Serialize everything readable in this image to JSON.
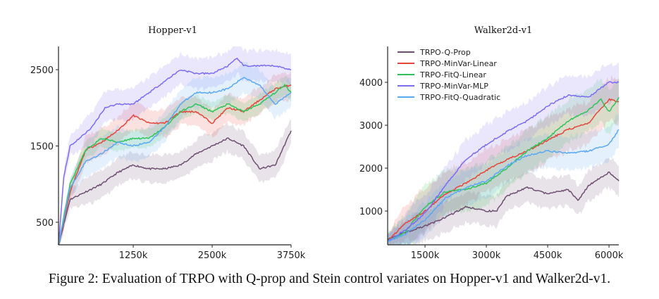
{
  "caption": "Figure 2: Evaluation of TRPO with Q-prop and Stein control variates on Hopper-v1 and Walker2d-v1.",
  "chart_data": [
    {
      "type": "line",
      "title": "Hopper-v1",
      "xlabel": "",
      "ylabel": "",
      "xlim": [
        66,
        3750
      ],
      "ylim": [
        204,
        2805
      ],
      "xticks": [
        1250,
        2500,
        3750
      ],
      "xtick_labels": [
        "1250k",
        "2500k",
        "3750k"
      ],
      "yticks": [
        500,
        1500,
        2500
      ],
      "ytick_labels": [
        "500",
        "1500",
        "2500"
      ],
      "grid": false,
      "legend": "none",
      "series": [
        {
          "name": "TRPO-Q-Prop",
          "color": "#6e4f72",
          "band": 180,
          "x": [
            66,
            250,
            500,
            750,
            1000,
            1250,
            1500,
            1750,
            2000,
            2250,
            2500,
            2750,
            3000,
            3250,
            3500,
            3750
          ],
          "y": [
            200,
            800,
            900,
            1000,
            1150,
            1250,
            1200,
            1200,
            1250,
            1400,
            1500,
            1600,
            1500,
            1200,
            1250,
            1700
          ]
        },
        {
          "name": "TRPO-MinVar-Linear",
          "color": "#e5453a",
          "band": 180,
          "x": [
            66,
            250,
            500,
            750,
            1000,
            1250,
            1500,
            1750,
            2000,
            2250,
            2500,
            2750,
            3000,
            3250,
            3500,
            3750
          ],
          "y": [
            200,
            900,
            1450,
            1550,
            1700,
            1900,
            1800,
            1800,
            1950,
            1950,
            1800,
            2000,
            1950,
            2100,
            2250,
            2300
          ]
        },
        {
          "name": "TRPO-FitQ-Linear",
          "color": "#2fc45a",
          "band": 120,
          "x": [
            66,
            250,
            500,
            750,
            1000,
            1250,
            1500,
            1750,
            2000,
            2250,
            2500,
            2750,
            3000,
            3250,
            3500,
            3650,
            3750
          ],
          "y": [
            200,
            1000,
            1450,
            1600,
            1550,
            1600,
            1600,
            1750,
            1950,
            2050,
            1950,
            2050,
            1950,
            2050,
            2200,
            2300,
            2200
          ]
        },
        {
          "name": "TRPO-MinVar-MLP",
          "color": "#7b6cf5",
          "band": 200,
          "x": [
            66,
            150,
            250,
            400,
            600,
            800,
            1000,
            1250,
            1500,
            1750,
            2000,
            2250,
            2500,
            2750,
            2900,
            3000,
            3250,
            3500,
            3750
          ],
          "y": [
            200,
            1100,
            1500,
            1600,
            1750,
            2000,
            2050,
            2050,
            2200,
            2350,
            2500,
            2450,
            2450,
            2550,
            2650,
            2550,
            2550,
            2550,
            2500
          ]
        },
        {
          "name": "TRPO-FitQ-Quadratic",
          "color": "#5aa8f4",
          "band": 200,
          "x": [
            66,
            250,
            500,
            750,
            1000,
            1250,
            1500,
            1750,
            2000,
            2250,
            2500,
            2750,
            3000,
            3250,
            3500,
            3750
          ],
          "y": [
            200,
            950,
            1300,
            1400,
            1550,
            1500,
            1550,
            1750,
            2050,
            2200,
            2200,
            2250,
            2400,
            2300,
            2050,
            2200
          ]
        }
      ]
    },
    {
      "type": "line",
      "title": "Walker2d-v1",
      "xlabel": "",
      "ylabel": "",
      "xlim": [
        586,
        6240
      ],
      "ylim": [
        213,
        4836
      ],
      "xticks": [
        1500,
        3000,
        4500,
        6000
      ],
      "xtick_labels": [
        "1500k",
        "3000k",
        "4500k",
        "6000k"
      ],
      "yticks": [
        1000,
        2000,
        3000,
        4000
      ],
      "ytick_labels": [
        "1000",
        "2000",
        "3000",
        "4000"
      ],
      "grid": false,
      "legend": "top-left",
      "series": [
        {
          "name": "TRPO-Q-Prop",
          "color": "#6e4f72",
          "band": 350,
          "x": [
            586,
            1000,
            1500,
            2000,
            2500,
            3000,
            3250,
            3500,
            4000,
            4500,
            5000,
            5250,
            5500,
            6000,
            6240
          ],
          "y": [
            350,
            500,
            650,
            850,
            1100,
            1000,
            1000,
            1350,
            1550,
            1400,
            1500,
            1250,
            1600,
            1900,
            1700
          ]
        },
        {
          "name": "TRPO-MinVar-Linear",
          "color": "#e5453a",
          "band": 500,
          "x": [
            586,
            1000,
            1500,
            2000,
            2500,
            3000,
            3500,
            4000,
            4500,
            5000,
            5500,
            6000,
            6240
          ],
          "y": [
            300,
            700,
            1000,
            1400,
            1650,
            1950,
            2200,
            2400,
            2650,
            2900,
            3050,
            3600,
            3550
          ]
        },
        {
          "name": "TRPO-FitQ-Linear",
          "color": "#2fc45a",
          "band": 500,
          "x": [
            586,
            1000,
            1500,
            2000,
            2500,
            3000,
            3500,
            4000,
            4500,
            5000,
            5500,
            5800,
            6000,
            6240
          ],
          "y": [
            300,
            500,
            1100,
            1450,
            1500,
            1650,
            2000,
            2400,
            2700,
            3100,
            3350,
            3600,
            3300,
            3650
          ]
        },
        {
          "name": "TRPO-MinVar-MLP",
          "color": "#7b6cf5",
          "band": 450,
          "x": [
            586,
            1000,
            1500,
            2000,
            2500,
            3000,
            3500,
            4000,
            4500,
            5000,
            5500,
            6000,
            6240
          ],
          "y": [
            300,
            550,
            950,
            1600,
            2200,
            2550,
            2850,
            3100,
            3450,
            3700,
            3650,
            4000,
            4000
          ]
        },
        {
          "name": "TRPO-FitQ-Quadratic",
          "color": "#5aa8f4",
          "band": 400,
          "x": [
            586,
            1000,
            1500,
            2000,
            2500,
            3000,
            3500,
            4000,
            4500,
            5000,
            5500,
            6000,
            6240
          ],
          "y": [
            300,
            450,
            800,
            1300,
            1550,
            1700,
            2050,
            2300,
            2400,
            2350,
            2400,
            2550,
            2900
          ]
        }
      ]
    }
  ]
}
